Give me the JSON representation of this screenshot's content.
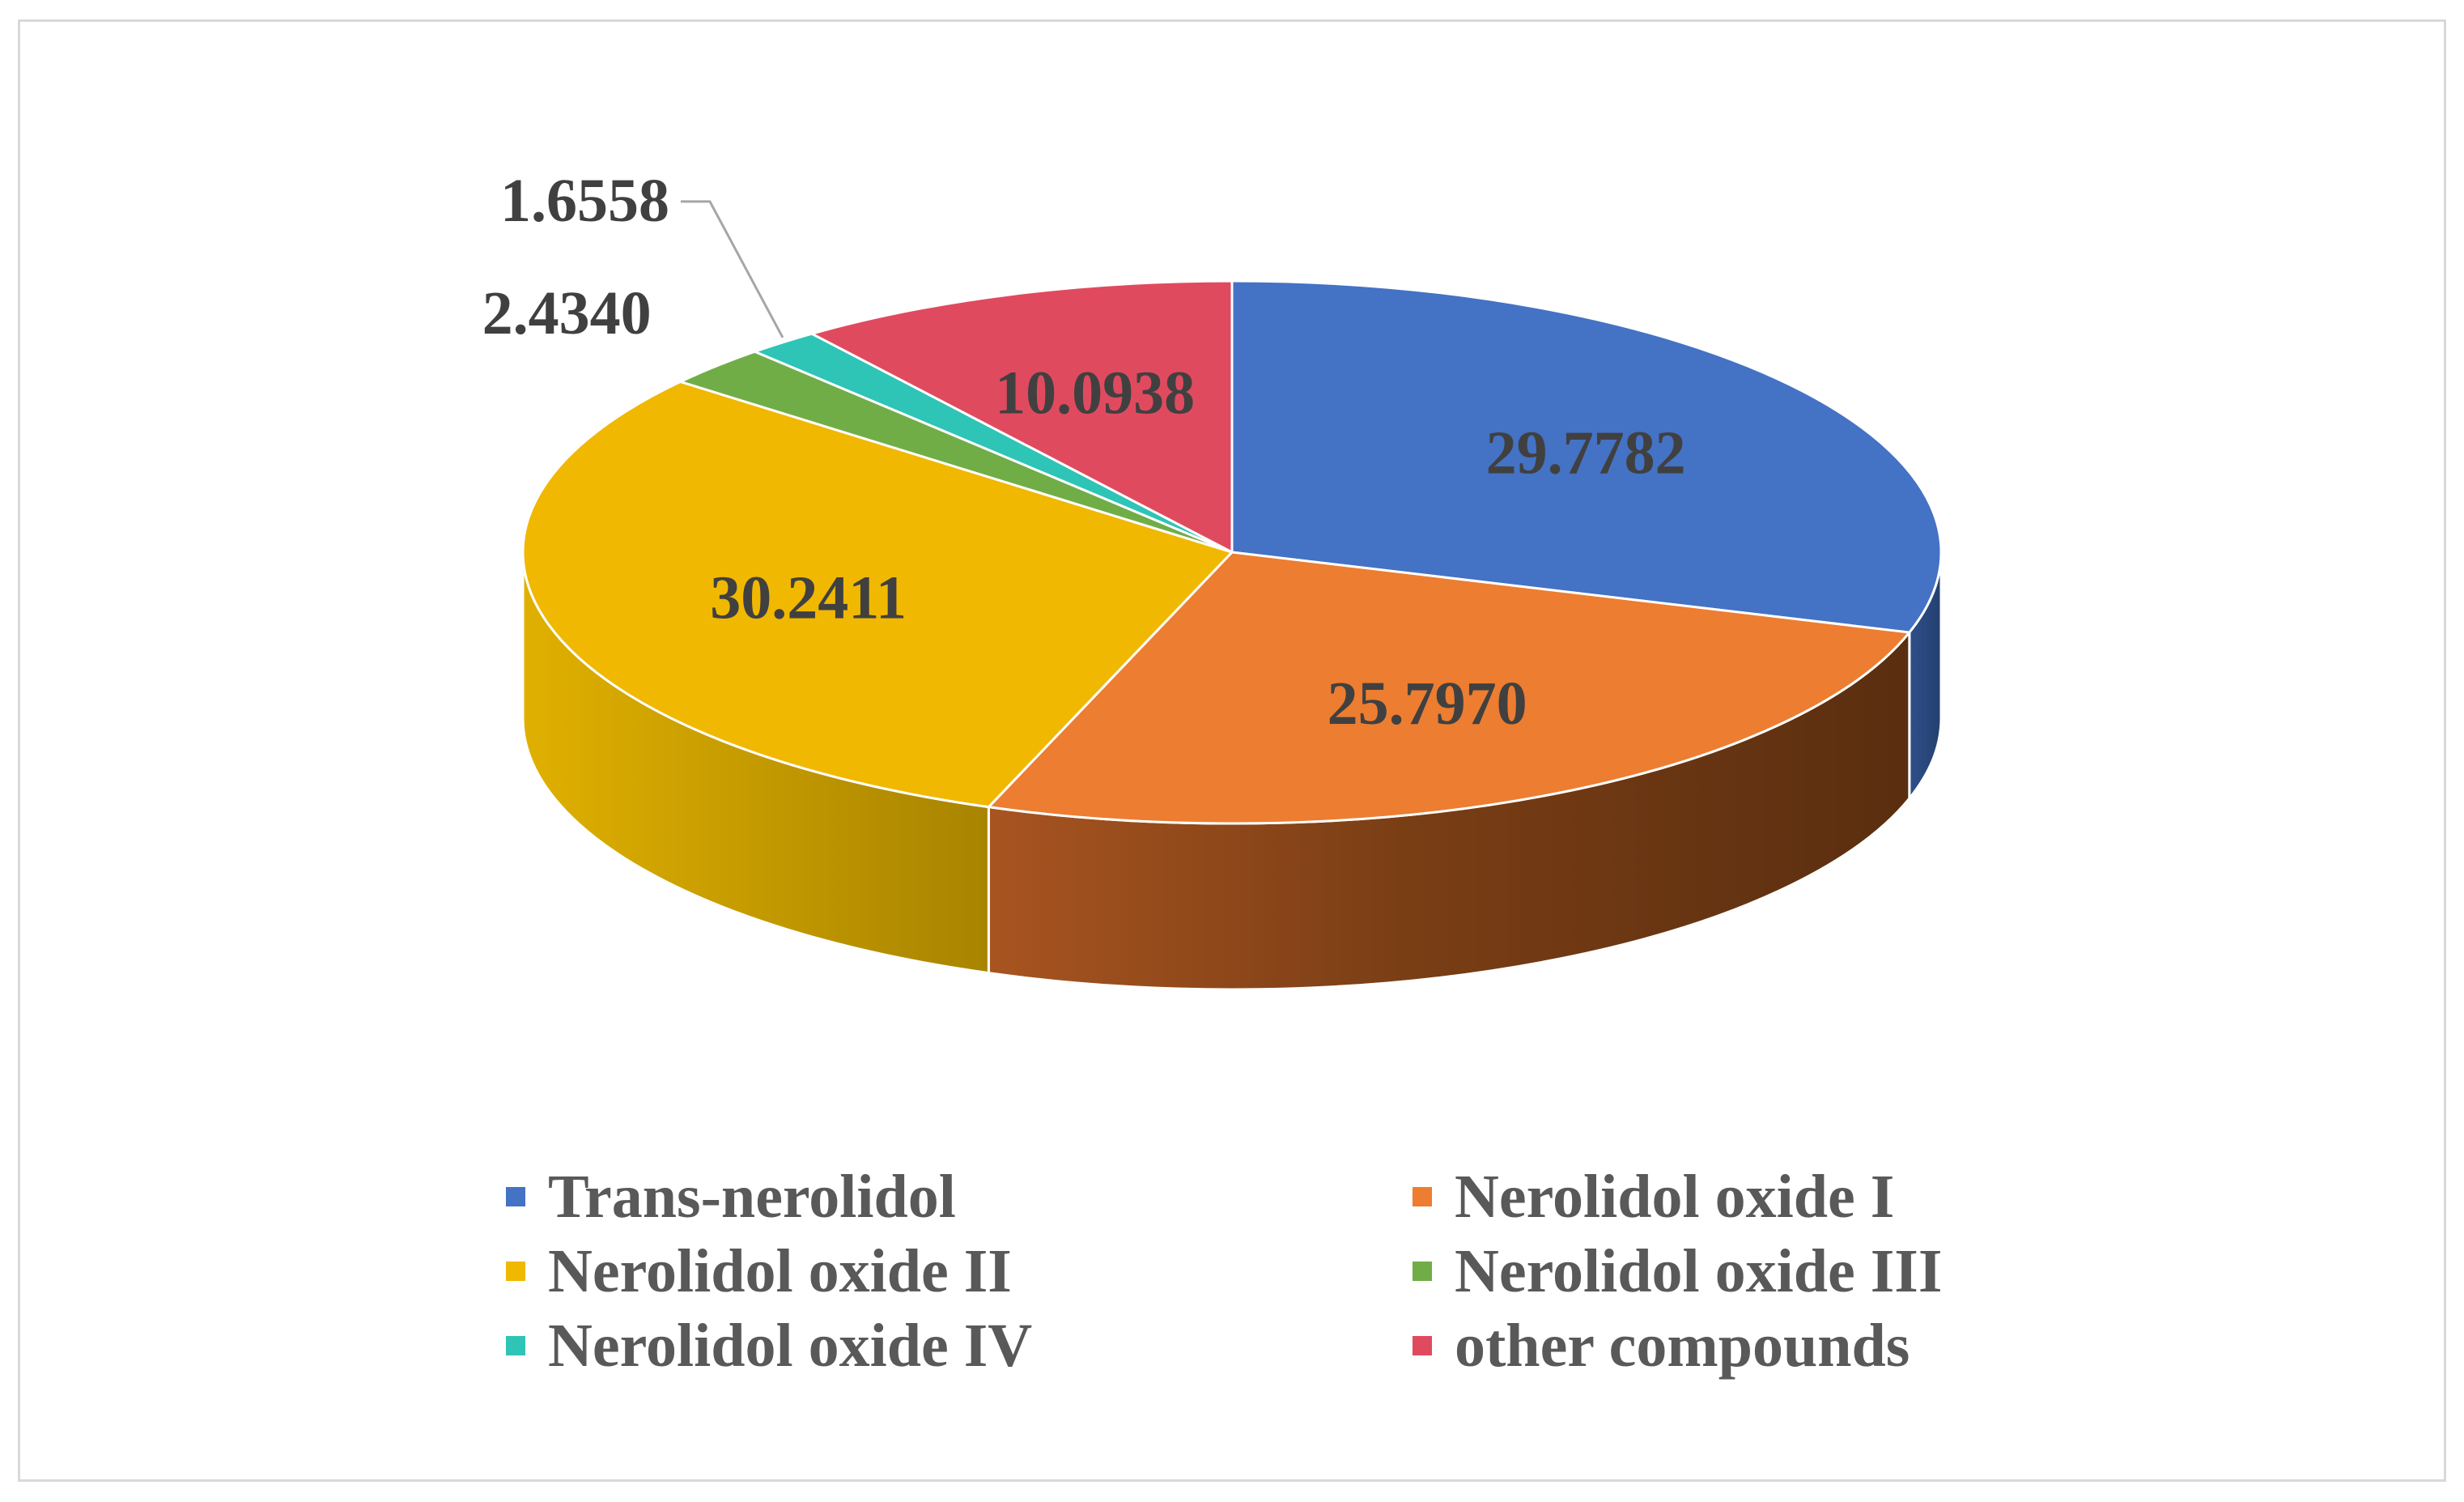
{
  "chart_data": {
    "type": "pie",
    "title": "",
    "style": "3d",
    "categories": [
      "Trans-nerolidol",
      "Nerolidol oxide I",
      "Nerolidol oxide II",
      "Nerolidol oxide III",
      "Nerolidol oxide IV",
      "other compounds"
    ],
    "values": [
      29.7782,
      25.797,
      30.2411,
      2.434,
      1.6558,
      10.0938
    ],
    "value_labels": [
      "29.7782",
      "25.7970",
      "30.2411",
      "2.4340",
      "1.6558",
      "10.0938"
    ],
    "colors": [
      "#4472C4",
      "#ED7D31",
      "#F0B800",
      "#70AD47",
      "#2EC4B6",
      "#E04A5F"
    ],
    "legend_position": "bottom",
    "legend": [
      {
        "label": "Trans-nerolidol",
        "color": "#4472C4"
      },
      {
        "label": "Nerolidol oxide I",
        "color": "#ED7D31"
      },
      {
        "label": "Nerolidol oxide II",
        "color": "#F0B800"
      },
      {
        "label": "Nerolidol oxide III",
        "color": "#70AD47"
      },
      {
        "label": "Nerolidol oxide IV",
        "color": "#2EC4B6"
      },
      {
        "label": "other compounds",
        "color": "#E04A5F"
      }
    ]
  }
}
